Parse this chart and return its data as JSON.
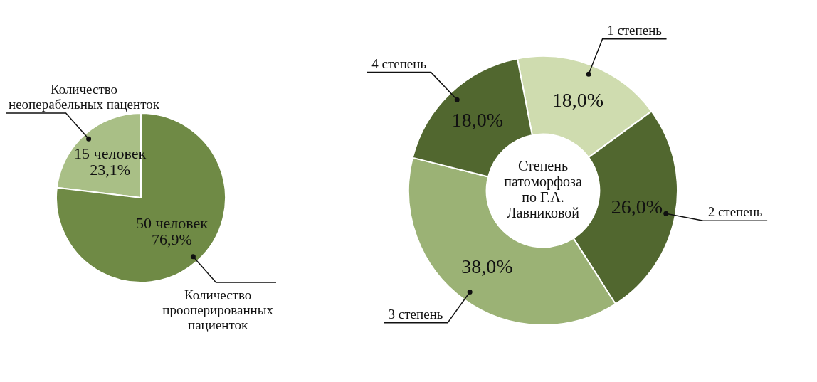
{
  "chart_data": [
    {
      "type": "pie",
      "categories": [
        "Количество неоперабельных паценток",
        "Количество прооперированных пациенток"
      ],
      "values": [
        15,
        50
      ],
      "value_labels": [
        "15 человек\n23,1%",
        "50 человек\n76,9%"
      ],
      "colors": [
        "#a9bf86",
        "#6f8a45"
      ],
      "legend": false
    },
    {
      "type": "donut",
      "title": "Степень патоморфоза по Г.А. Лавниковой",
      "categories": [
        "1 степень",
        "2 степень",
        "3 степень",
        "4 степень"
      ],
      "values": [
        18,
        26,
        38,
        18
      ],
      "value_labels": [
        "18,0%",
        "26,0%",
        "38,0%",
        "18,0%"
      ],
      "colors": [
        "#cfdcaf",
        "#51672f",
        "#9bb275",
        "#51672f"
      ],
      "legend": false
    }
  ]
}
